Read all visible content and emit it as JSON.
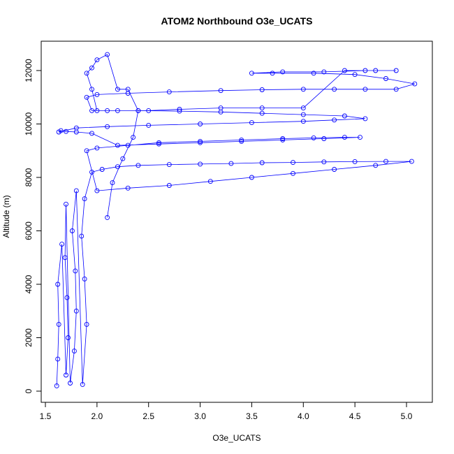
{
  "chart_data": {
    "type": "scatter",
    "title": "ATOM2 Northbound O3e_UCATS",
    "xlabel": "O3e_UCATS",
    "ylabel": "Altitude (m)",
    "xlim": [
      1.5,
      5.2
    ],
    "ylim": [
      0,
      12800
    ],
    "x_ticks": [
      1.5,
      2.0,
      2.5,
      3.0,
      3.5,
      4.0,
      4.5,
      5.0
    ],
    "x_tick_labels": [
      "1.5",
      "2.0",
      "2.5",
      "3.0",
      "3.5",
      "4.0",
      "4.5",
      "5.0"
    ],
    "y_ticks": [
      0,
      2000,
      4000,
      6000,
      8000,
      10000,
      12000
    ],
    "y_tick_labels": [
      "0",
      "2000",
      "4000",
      "6000",
      "8000",
      "10000",
      "12000"
    ],
    "y_tick_orientation": "vertical",
    "grid": false,
    "legend": "none",
    "series": [
      {
        "color": "#0000ff",
        "marker": "open-circle",
        "line": true,
        "x": [
          1.61,
          1.62,
          1.63,
          1.62,
          1.66,
          1.7,
          1.72,
          1.71,
          1.69,
          1.7,
          1.74,
          1.78,
          1.8,
          1.79,
          1.76,
          1.8,
          1.86,
          1.9,
          1.88,
          1.85,
          1.88,
          1.95,
          2.05,
          2.2,
          2.4,
          2.7,
          3.0,
          3.3,
          3.6,
          3.9,
          4.2,
          4.5,
          4.8,
          5.05,
          4.7,
          4.3,
          3.9,
          3.5,
          3.1,
          2.7,
          2.3,
          2.0,
          1.9,
          2.0,
          2.3,
          2.6,
          3.0,
          3.4,
          3.8,
          4.1,
          4.4,
          4.55,
          4.2,
          3.8,
          3.4,
          3.0,
          2.6,
          2.2,
          1.95,
          1.8,
          1.7,
          1.65,
          1.63,
          1.8,
          2.1,
          2.5,
          3.0,
          3.5,
          4.0,
          4.3,
          4.6,
          4.4,
          4.0,
          3.6,
          3.2,
          2.8,
          2.4,
          2.1,
          1.95,
          1.9,
          2.0,
          2.3,
          2.7,
          3.2,
          3.6,
          4.0,
          4.3,
          4.6,
          4.9,
          5.08,
          4.8,
          4.5,
          4.1,
          3.7,
          3.5,
          3.8,
          4.2,
          4.6,
          4.9,
          4.7,
          4.4,
          4.0,
          3.6,
          3.2,
          2.8,
          2.5,
          2.2,
          2.0,
          1.95,
          1.9,
          1.95,
          2.0,
          2.1,
          2.2,
          2.3,
          2.4,
          2.35,
          2.25,
          2.15,
          2.1
        ],
        "y": [
          200,
          1200,
          2500,
          4000,
          5500,
          600,
          2000,
          3500,
          5000,
          7000,
          300,
          1500,
          3000,
          4500,
          6000,
          7500,
          250,
          2500,
          4200,
          5800,
          7200,
          8200,
          8300,
          8400,
          8450,
          8480,
          8500,
          8520,
          8550,
          8560,
          8580,
          8590,
          8600,
          8600,
          8450,
          8300,
          8150,
          8000,
          7850,
          7700,
          7600,
          7500,
          9000,
          9100,
          9200,
          9300,
          9350,
          9400,
          9450,
          9480,
          9500,
          9500,
          9450,
          9400,
          9350,
          9300,
          9250,
          9200,
          9650,
          9700,
          9720,
          9750,
          9700,
          9850,
          9900,
          9950,
          10000,
          10050,
          10100,
          10150,
          10200,
          10300,
          10350,
          10400,
          10450,
          10480,
          10500,
          10500,
          10500,
          11000,
          11100,
          11150,
          11200,
          11250,
          11280,
          11300,
          11300,
          11300,
          11300,
          11500,
          11700,
          11850,
          11900,
          11900,
          11900,
          11950,
          11950,
          12000,
          12000,
          12000,
          12000,
          10600,
          10600,
          10600,
          10550,
          10500,
          10500,
          10500,
          11300,
          11900,
          12100,
          12400,
          12600,
          11300,
          11300,
          10500,
          9500,
          8700,
          7800,
          6500
        ]
      }
    ]
  }
}
